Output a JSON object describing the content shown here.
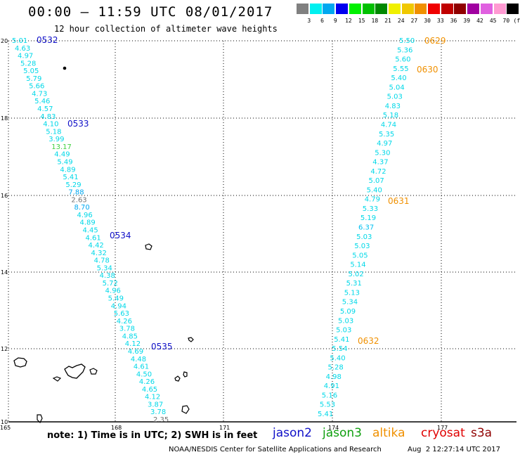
{
  "header": {
    "title": "00:00 – 11:59 UTC 08/01/2017",
    "subtitle": "12 hour collection of altimeter wave heights"
  },
  "legend": {
    "unit": "(ft)",
    "colors": [
      "#808080",
      "#00f0f0",
      "#00a8f0",
      "#0000f0",
      "#00f000",
      "#00c000",
      "#008800",
      "#f0f000",
      "#f0c800",
      "#f09000",
      "#f00000",
      "#c00000",
      "#900000",
      "#a000a0",
      "#e060e0",
      "#ff9ad2",
      "#000000"
    ],
    "labels": [
      "3",
      "6",
      "9",
      "12",
      "15",
      "18",
      "21",
      "24",
      "27",
      "30",
      "33",
      "36",
      "39",
      "42",
      "45",
      "70"
    ]
  },
  "axes": {
    "lon_labels": [
      "165",
      "168",
      "171",
      "174",
      "177"
    ],
    "lat_labels": [
      "20",
      "18",
      "16",
      "14",
      "12",
      "10"
    ]
  },
  "tracks": {
    "west": [
      {
        "v": "5.01",
        "c": "#00d8e8"
      },
      {
        "v": "4.63",
        "c": "#00d8e8"
      },
      {
        "v": "4.97",
        "c": "#00d8e8"
      },
      {
        "v": "5.28",
        "c": "#00d8e8"
      },
      {
        "v": "5.05",
        "c": "#00d8e8"
      },
      {
        "v": "5.79",
        "c": "#00d8e8"
      },
      {
        "v": "5.66",
        "c": "#00d8e8"
      },
      {
        "v": "4.73",
        "c": "#00d8e8"
      },
      {
        "v": "5.46",
        "c": "#00d8e8"
      },
      {
        "v": "4.57",
        "c": "#00d8e8"
      },
      {
        "v": "4.83",
        "c": "#00d8e8"
      },
      {
        "v": "4.10",
        "c": "#00d8e8"
      },
      {
        "v": "5.18",
        "c": "#00d8e8"
      },
      {
        "v": "3.99",
        "c": "#00d8e8"
      },
      {
        "v": "13.17",
        "c": "#40d040"
      },
      {
        "v": "4.49",
        "c": "#00d8e8"
      },
      {
        "v": "5.49",
        "c": "#00d8e8"
      },
      {
        "v": "4.89",
        "c": "#00d8e8"
      },
      {
        "v": "5.41",
        "c": "#00d8e8"
      },
      {
        "v": "5.29",
        "c": "#00d8e8"
      },
      {
        "v": "7.88",
        "c": "#00a8f0"
      },
      {
        "v": "2.63",
        "c": "#707070"
      },
      {
        "v": "8.70",
        "c": "#00a8f0"
      },
      {
        "v": "4.96",
        "c": "#00d8e8"
      },
      {
        "v": "4.89",
        "c": "#00d8e8"
      },
      {
        "v": "4.45",
        "c": "#00d8e8"
      },
      {
        "v": "4.61",
        "c": "#00d8e8"
      },
      {
        "v": "4.42",
        "c": "#00d8e8"
      },
      {
        "v": "4.32",
        "c": "#00d8e8"
      },
      {
        "v": "4.78",
        "c": "#00d8e8"
      },
      {
        "v": "5.34",
        "c": "#00d8e8"
      },
      {
        "v": "4.38",
        "c": "#00d8e8"
      },
      {
        "v": "5.72",
        "c": "#00d8e8"
      },
      {
        "v": "4.96",
        "c": "#00d8e8"
      },
      {
        "v": "5.49",
        "c": "#00d8e8"
      },
      {
        "v": "4.94",
        "c": "#00d8e8"
      },
      {
        "v": "5.63",
        "c": "#00d8e8"
      },
      {
        "v": "4.26",
        "c": "#00d8e8"
      },
      {
        "v": "3.78",
        "c": "#00d8e8"
      },
      {
        "v": "4.85",
        "c": "#00d8e8"
      },
      {
        "v": "4.12",
        "c": "#00d8e8"
      },
      {
        "v": "4.69",
        "c": "#00d8e8"
      },
      {
        "v": "4.48",
        "c": "#00d8e8"
      },
      {
        "v": "4.61",
        "c": "#00d8e8"
      },
      {
        "v": "4.50",
        "c": "#00d8e8"
      },
      {
        "v": "4.26",
        "c": "#00d8e8"
      },
      {
        "v": "4.65",
        "c": "#00d8e8"
      },
      {
        "v": "4.12",
        "c": "#00d8e8"
      },
      {
        "v": "3.87",
        "c": "#00d8e8"
      },
      {
        "v": "3.78",
        "c": "#00d8e8"
      },
      {
        "v": "2.35",
        "c": "#707070"
      }
    ],
    "east": [
      {
        "v": "5.50",
        "c": "#00d8e8"
      },
      {
        "v": "5.36",
        "c": "#00d8e8"
      },
      {
        "v": "5.60",
        "c": "#00d8e8"
      },
      {
        "v": "5.55",
        "c": "#00d8e8"
      },
      {
        "v": "5.40",
        "c": "#00d8e8"
      },
      {
        "v": "5.04",
        "c": "#00d8e8"
      },
      {
        "v": "5.03",
        "c": "#00d8e8"
      },
      {
        "v": "4.83",
        "c": "#00d8e8"
      },
      {
        "v": "5.18",
        "c": "#00d8e8"
      },
      {
        "v": "4.74",
        "c": "#00d8e8"
      },
      {
        "v": "5.35",
        "c": "#00d8e8"
      },
      {
        "v": "4.97",
        "c": "#00d8e8"
      },
      {
        "v": "5.30",
        "c": "#00d8e8"
      },
      {
        "v": "4.37",
        "c": "#00d8e8"
      },
      {
        "v": "4.72",
        "c": "#00d8e8"
      },
      {
        "v": "5.07",
        "c": "#00d8e8"
      },
      {
        "v": "5.40",
        "c": "#00d8e8"
      },
      {
        "v": "4.79",
        "c": "#00d8e8"
      },
      {
        "v": "5.33",
        "c": "#00d8e8"
      },
      {
        "v": "5.19",
        "c": "#00d8e8"
      },
      {
        "v": "6.37",
        "c": "#00c0f0"
      },
      {
        "v": "5.03",
        "c": "#00d8e8"
      },
      {
        "v": "5.03",
        "c": "#00d8e8"
      },
      {
        "v": "5.05",
        "c": "#00d8e8"
      },
      {
        "v": "5.14",
        "c": "#00d8e8"
      },
      {
        "v": "5.02",
        "c": "#00d8e8"
      },
      {
        "v": "5.31",
        "c": "#00d8e8"
      },
      {
        "v": "5.13",
        "c": "#00d8e8"
      },
      {
        "v": "5.34",
        "c": "#00d8e8"
      },
      {
        "v": "5.09",
        "c": "#00d8e8"
      },
      {
        "v": "5.03",
        "c": "#00d8e8"
      },
      {
        "v": "5.03",
        "c": "#00d8e8"
      },
      {
        "v": "5.41",
        "c": "#00d8e8"
      },
      {
        "v": "5.54",
        "c": "#00d8e8"
      },
      {
        "v": "5.40",
        "c": "#00d8e8"
      },
      {
        "v": "5.28",
        "c": "#00d8e8"
      },
      {
        "v": "4.98",
        "c": "#00d8e8"
      },
      {
        "v": "4.91",
        "c": "#00d8e8"
      },
      {
        "v": "5.16",
        "c": "#00d8e8"
      },
      {
        "v": "5.53",
        "c": "#00d8e8"
      },
      {
        "v": "5.41",
        "c": "#00d8e8"
      }
    ],
    "west_times": [
      {
        "t": "0532",
        "c": "#1010c8"
      },
      {
        "t": "0533",
        "c": "#1010c8"
      },
      {
        "t": "0534",
        "c": "#1010c8"
      },
      {
        "t": "0535",
        "c": "#1010c8"
      }
    ],
    "east_times": [
      {
        "t": "0629",
        "c": "#f09000"
      },
      {
        "t": "0630",
        "c": "#f09000"
      },
      {
        "t": "0631",
        "c": "#f09000"
      },
      {
        "t": "0632",
        "c": "#f09000"
      }
    ]
  },
  "footer": {
    "note": "note: 1) Time is in UTC; 2) SWH is in feet",
    "satellites": [
      {
        "name": "jason2",
        "color": "#1010c8"
      },
      {
        "name": "jason3",
        "color": "#10a010"
      },
      {
        "name": "altika",
        "color": "#f09000"
      },
      {
        "name": "cryosat",
        "color": "#e00000"
      },
      {
        "name": "s3a",
        "color": "#900000"
      }
    ],
    "credit": "NOAA/NESDIS Center for Satellite Applications and Research",
    "timestamp": "Aug  2 12:27:14 UTC 2017"
  }
}
